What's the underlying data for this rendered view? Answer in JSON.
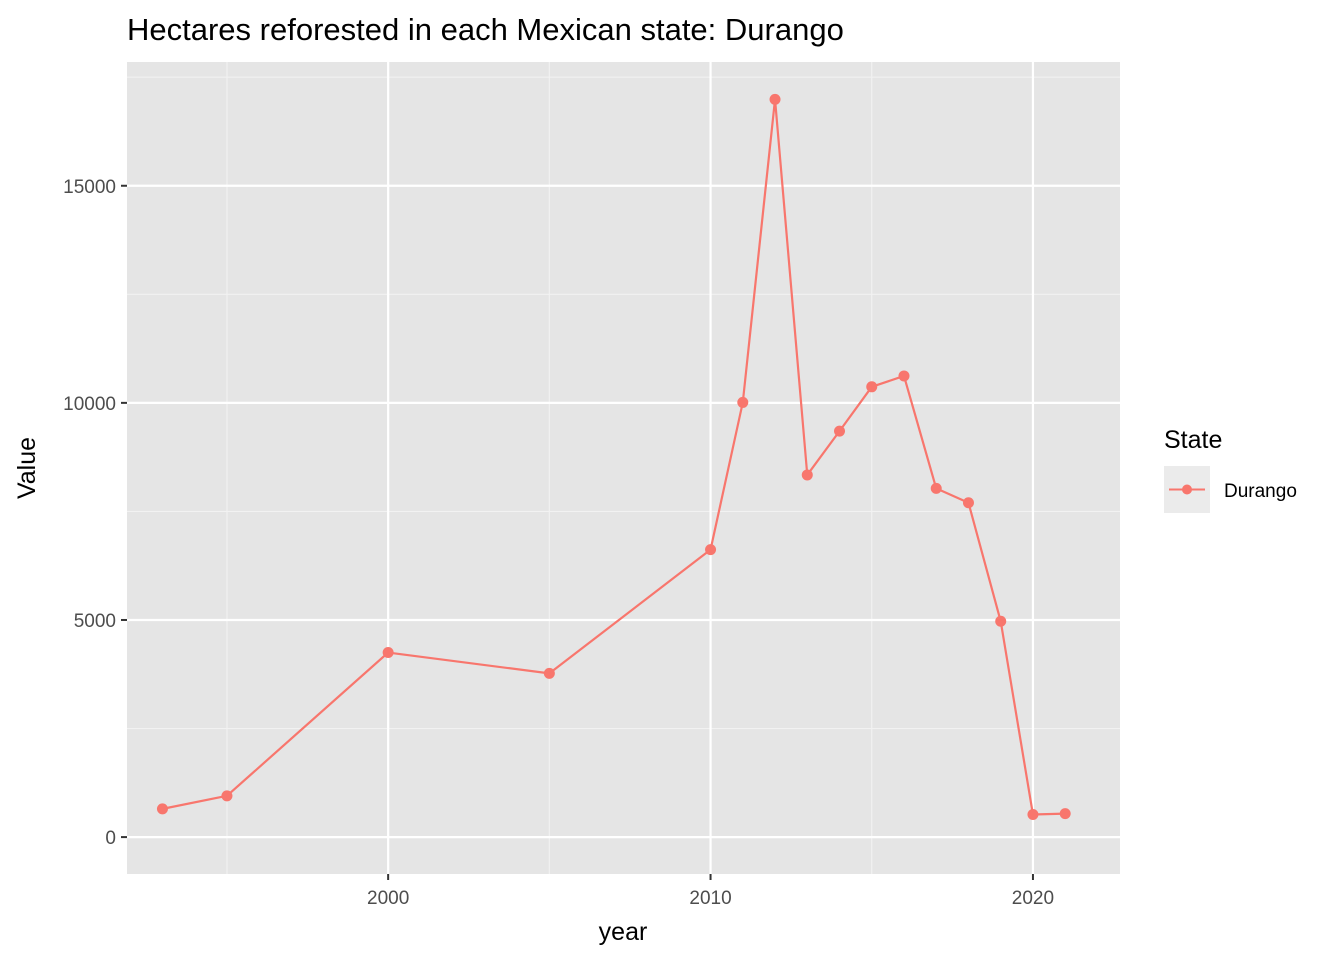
{
  "chart_data": {
    "type": "line",
    "title": "Hectares reforested in each Mexican state: Durango",
    "xlabel": "year",
    "ylabel": "Value",
    "xlim": [
      1991.9,
      2022.7
    ],
    "ylim": [
      -850,
      17850
    ],
    "x_ticks": [
      2000,
      2010,
      2020
    ],
    "x_minor_ticks": [
      1995,
      2005,
      2015
    ],
    "y_ticks": [
      0,
      5000,
      10000,
      15000
    ],
    "y_minor_ticks": [
      2500,
      7500,
      12500,
      17500
    ],
    "grid": true,
    "legend": {
      "title": "State",
      "position": "right"
    },
    "series": [
      {
        "name": "Durango",
        "color": "#f8766d",
        "points": [
          {
            "x": 1993,
            "y": 650
          },
          {
            "x": 1995,
            "y": 950
          },
          {
            "x": 2000,
            "y": 4250
          },
          {
            "x": 2005,
            "y": 3770
          },
          {
            "x": 2010,
            "y": 6620
          },
          {
            "x": 2011,
            "y": 10010
          },
          {
            "x": 2012,
            "y": 16990
          },
          {
            "x": 2013,
            "y": 8340
          },
          {
            "x": 2014,
            "y": 9350
          },
          {
            "x": 2015,
            "y": 10370
          },
          {
            "x": 2016,
            "y": 10620
          },
          {
            "x": 2017,
            "y": 8030
          },
          {
            "x": 2018,
            "y": 7700
          },
          {
            "x": 2019,
            "y": 4970
          },
          {
            "x": 2020,
            "y": 520
          },
          {
            "x": 2021,
            "y": 540
          }
        ]
      }
    ]
  }
}
